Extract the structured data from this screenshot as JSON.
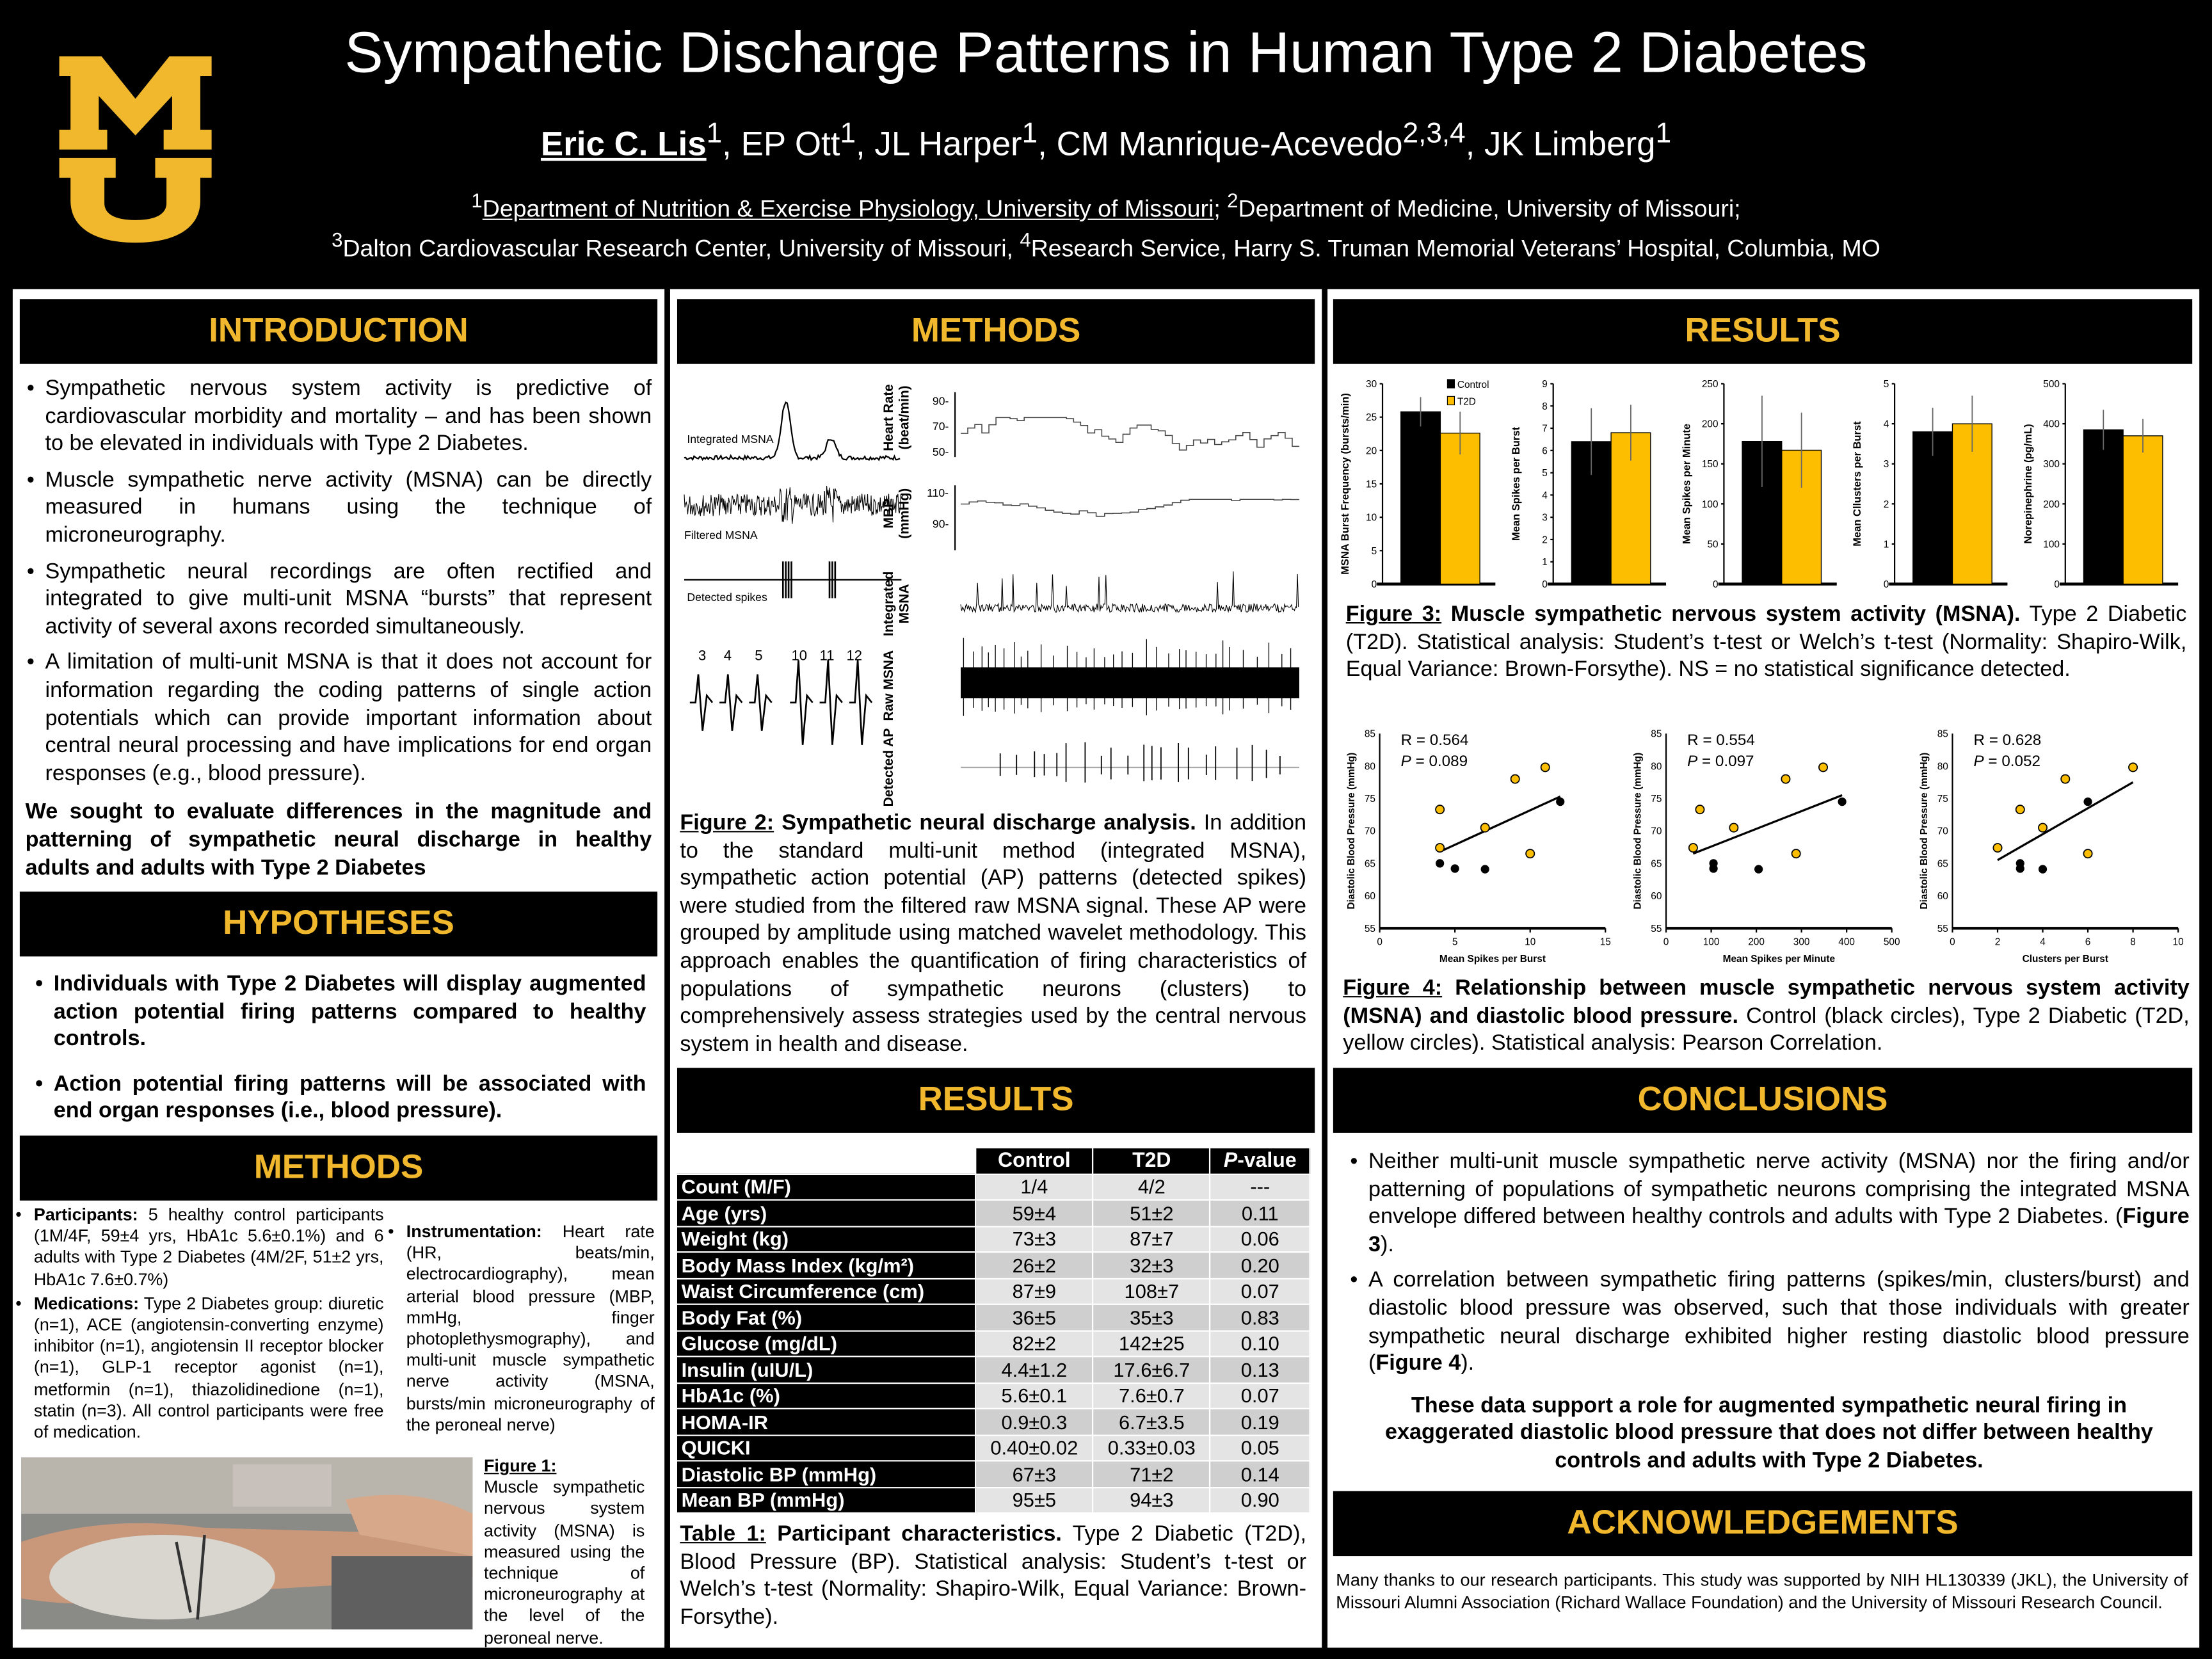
{
  "header": {
    "title": "Sympathetic Discharge Patterns in Human Type 2 Diabetes",
    "logo_text": "MU",
    "authors": [
      {
        "name": "Eric C. Lis",
        "sup": "1",
        "sep": ", "
      },
      {
        "name": "EP Ott",
        "sup": "1",
        "sep": ", "
      },
      {
        "name": "JL Harper",
        "sup": "1",
        "sep": ", "
      },
      {
        "name": "CM Manrique-Acevedo",
        "sup": "2,3,4",
        "sep": ", "
      },
      {
        "name": "JK Limberg",
        "sup": "1",
        "sep": ""
      }
    ],
    "affiliations": [
      {
        "sup": "1",
        "text": "Department of Nutrition & Exercise Physiology, University of Missouri",
        "sep": "; "
      },
      {
        "sup": "2",
        "text": "Department of Medicine, University of Missouri;",
        "sep": ""
      },
      {
        "sup": "3",
        "text": "Dalton Cardiovascular Research Center, University of Missouri, ",
        "sep": ""
      },
      {
        "sup": "4",
        "text": "Research Service, Harry S. Truman Memorial Veterans’ Hospital, Columbia, MO",
        "sep": ""
      }
    ]
  },
  "introduction": {
    "heading": "INTRODUCTION",
    "bullets": [
      "Sympathetic nervous system activity is predictive of cardiovascular morbidity and mortality – and has been shown to be elevated in individuals with Type 2 Diabetes.",
      "Muscle sympathetic nerve activity (MSNA) can be directly measured in humans using the technique of microneurography.",
      "Sympathetic neural recordings are often rectified and integrated to give multi-unit MSNA “bursts” that represent activity of several axons recorded simultaneously.",
      "A limitation of multi-unit MSNA is that it does not account for information regarding the coding patterns of single action potentials which can provide important information about central neural processing and have implications for end organ responses (e.g., blood pressure)."
    ],
    "aim": "We sought to evaluate differences in the magnitude and patterning of sympathetic neural discharge in healthy adults and adults with Type 2 Diabetes"
  },
  "hypotheses": {
    "heading": "HYPOTHESES",
    "bullets": [
      "Individuals with Type 2 Diabetes will display augmented action potential firing patterns compared to healthy controls.",
      "Action potential firing patterns will be associated with end organ responses (i.e., blood pressure)."
    ]
  },
  "methods_left": {
    "heading": "METHODS",
    "participants_label": "Participants:",
    "participants": " 5 healthy control participants (1M/4F, 59±4 yrs, HbA1c 5.6±0.1%) and 6 adults with Type 2 Diabetes (4M/2F, 51±2 yrs, HbA1c 7.6±0.7%)",
    "medications_label": "Medications:",
    "medications": " Type 2 Diabetes group: diuretic (n=1), ACE (angiotensin-converting enzyme) inhibitor (n=1), angiotensin II receptor blocker (n=1), GLP-1 receptor agonist (n=1), metformin (n=1), thiazolidinedione (n=1), statin (n=3). All control participants were free of medication.",
    "instrumentation_label": "Instrumentation:",
    "instrumentation": " Heart rate (HR, beats/min, electrocardiography), mean arterial blood pressure (MBP, mmHg, finger photoplethysmography), and multi-unit muscle sympathetic nerve activity (MSNA, bursts/min microneurography of the peroneal nerve)",
    "fig1_label": "Figure 1:",
    "fig1_caption": "Muscle sympathetic nervous system activity (MSNA) is measured using the technique of microneurography at the level of the peroneal nerve."
  },
  "methods_mid": {
    "heading": "METHODS",
    "trace_labels": {
      "integrated": "Integrated MSNA",
      "filtered": "Filtered MSNA",
      "detected": "Detected spikes",
      "hr": "Heart Rate (beat/min)",
      "mbp": "MBP (mmHg)",
      "int_msna": "Integrated MSNA",
      "raw": "Raw MSNA",
      "ap": "Detected AP"
    },
    "hr_ticks": [
      "90-",
      "70-",
      "50-"
    ],
    "mbp_ticks": [
      "110-",
      "90-"
    ],
    "cluster_numbers": [
      "3",
      "4",
      "5",
      "10",
      "11",
      "12"
    ],
    "fig2_label": "Figure 2:",
    "fig2_title": " Sympathetic neural discharge analysis.",
    "fig2_caption": " In addition to the standard multi-unit method (integrated MSNA), sympathetic action potential (AP) patterns (detected spikes) were studied from the filtered raw MSNA signal. These AP were grouped by amplitude using matched wavelet methodology. This approach enables the quantification of firing characteristics of populations of sympathetic neurons (clusters) to comprehensively assess strategies used by the central nervous system in health and disease."
  },
  "results_table": {
    "heading": "RESULTS",
    "columns": [
      "",
      "Control",
      "T2D",
      "P",
      "-value"
    ],
    "rows": [
      [
        "Count (M/F)",
        "1/4",
        "4/2",
        "---"
      ],
      [
        "Age (yrs)",
        "59±4",
        "51±2",
        "0.11"
      ],
      [
        "Weight (kg)",
        "73±3",
        "87±7",
        "0.06"
      ],
      [
        "Body Mass Index (kg/m²)",
        "26±2",
        "32±3",
        "0.20"
      ],
      [
        "Waist Circumference (cm)",
        "87±9",
        "108±7",
        "0.07"
      ],
      [
        "Body Fat (%)",
        "36±5",
        "35±3",
        "0.83"
      ],
      [
        "Glucose (mg/dL)",
        "82±2",
        "142±25",
        "0.10"
      ],
      [
        "Insulin (uIU/L)",
        "4.4±1.2",
        "17.6±6.7",
        "0.13"
      ],
      [
        "HbA1c (%)",
        "5.6±0.1",
        "7.6±0.7",
        "0.07"
      ],
      [
        "HOMA-IR",
        "0.9±0.3",
        "6.7±3.5",
        "0.19"
      ],
      [
        "QUICKI",
        "0.40±0.02",
        "0.33±0.03",
        "0.05"
      ],
      [
        "Diastolic BP (mmHg)",
        "67±3",
        "71±2",
        "0.14"
      ],
      [
        "Mean BP (mmHg)",
        "95±5",
        "94±3",
        "0.90"
      ]
    ],
    "caption_label": "Table 1:",
    "caption_title": " Participant characteristics.",
    "caption": " Type 2 Diabetic (T2D), Blood Pressure (BP). Statistical analysis: Student’s t-test or Welch’s t-test (Normality: Shapiro-Wilk, Equal Variance: Brown-Forsythe)."
  },
  "results_right": {
    "heading": "RESULTS",
    "fig3_label": "Figure 3:",
    "fig3_title": " Muscle sympathetic nervous system activity (MSNA).",
    "fig3_caption": " Type 2 Diabetic (T2D). Statistical analysis: Student’s t-test or Welch’s t-test (Normality: Shapiro-Wilk, Equal Variance: Brown-Forsythe). NS = no statistical significance detected.",
    "fig4_label": "Figure 4:",
    "fig4_title": " Relationship between muscle sympathetic nervous system activity (MSNA) and diastolic blood pressure.",
    "fig4_caption": " Control (black circles), Type 2 Diabetic (T2D, yellow circles). Statistical analysis: Pearson Correlation."
  },
  "conclusions": {
    "heading": "CONCLUSIONS",
    "b1": "Neither multi-unit muscle sympathetic nerve activity (MSNA) nor the firing and/or patterning of populations of sympathetic neurons comprising the integrated MSNA envelope differed between healthy controls and adults with Type 2 Diabetes. (",
    "b1_ref": "Figure 3",
    "b1_end": ").",
    "b2": "A correlation between sympathetic firing patterns (spikes/min, clusters/burst) and diastolic blood pressure was observed, such that those individuals with greater sympathetic neural discharge exhibited higher resting diastolic blood pressure (",
    "b2_ref": "Figure 4",
    "b2_end": ").",
    "summary": "These data support a role for augmented sympathetic neural firing in exaggerated diastolic blood pressure that does not differ between healthy controls and adults with Type 2 Diabetes."
  },
  "acknowledgements": {
    "heading": "ACKNOWLEDGEMENTS",
    "text": "Many thanks to our research participants. This study was supported by NIH HL130339 (JKL), the University of Missouri Alumni Association (Richard Wallace Foundation) and the University of Missouri Research Council."
  },
  "colors": {
    "gold": "#F1B82D",
    "control": "#000000",
    "t2d": "#FDBE00"
  },
  "chart_data": [
    {
      "type": "bar",
      "categories": [
        "Control",
        "T2D"
      ],
      "legend": [
        "Control",
        "T2D"
      ],
      "legend_position": "top-right",
      "ylabel": "MSNA Burst Frequency (bursts/min)",
      "ylim": [
        0,
        30
      ],
      "yticks": [
        0,
        5,
        10,
        15,
        20,
        25,
        30
      ],
      "values": [
        25.8,
        22.6
      ],
      "errors": [
        2.2,
        3.2
      ]
    },
    {
      "type": "bar",
      "categories": [
        "Control",
        "T2D"
      ],
      "ylabel": "Mean Spikes per Burst",
      "ylim": [
        0,
        9
      ],
      "yticks": [
        0,
        1,
        2,
        3,
        4,
        5,
        6,
        7,
        8,
        9
      ],
      "values": [
        6.4,
        6.8
      ],
      "errors": [
        1.5,
        1.25
      ]
    },
    {
      "type": "bar",
      "categories": [
        "Control",
        "T2D"
      ],
      "ylabel": "Mean Spikes per Minute",
      "ylim": [
        0,
        250
      ],
      "yticks": [
        0,
        50,
        100,
        150,
        200,
        250
      ],
      "values": [
        178,
        167
      ],
      "errors": [
        57,
        47
      ]
    },
    {
      "type": "bar",
      "categories": [
        "Control",
        "T2D"
      ],
      "ylabel": "Mean Cllusters per Burst",
      "ylim": [
        0,
        5
      ],
      "yticks": [
        0,
        1,
        2,
        3,
        4,
        5
      ],
      "values": [
        3.8,
        4.0
      ],
      "errors": [
        0.6,
        0.7
      ]
    },
    {
      "type": "bar",
      "categories": [
        "Control",
        "T2D"
      ],
      "ylabel": "Norepinephrine (pg/mL)",
      "ylim": [
        0,
        500
      ],
      "yticks": [
        0,
        100,
        200,
        300,
        400,
        500
      ],
      "values": [
        385,
        370
      ],
      "errors": [
        50,
        42
      ]
    },
    {
      "type": "scatter",
      "xlabel": "Mean Spikes per Burst",
      "ylabel": "Diastolic Blood Pressure (mmHg)",
      "xlim": [
        0,
        15
      ],
      "ylim": [
        55,
        85
      ],
      "xticks": [
        0,
        5,
        10,
        15
      ],
      "yticks": [
        55,
        60,
        65,
        70,
        75,
        80,
        85
      ],
      "r_text": "R = 0.564",
      "p_label": "P",
      "p_text": " = 0.089",
      "control": [
        [
          4,
          65
        ],
        [
          5,
          64.2
        ],
        [
          7,
          64.1
        ],
        [
          12,
          74.5
        ]
      ],
      "t2d": [
        [
          4,
          73.3
        ],
        [
          4,
          67.4
        ],
        [
          7,
          70.5
        ],
        [
          9,
          78
        ],
        [
          10,
          66.5
        ],
        [
          11,
          79.8
        ]
      ],
      "fit": [
        [
          4,
          66.8
        ],
        [
          12,
          75.3
        ]
      ]
    },
    {
      "type": "scatter",
      "xlabel": "Mean Spikes per Minute",
      "ylabel": "Diastolic Blood Pressure (mmHg)",
      "xlim": [
        0,
        500
      ],
      "ylim": [
        55,
        85
      ],
      "xticks": [
        0,
        100,
        200,
        300,
        400,
        500
      ],
      "yticks": [
        55,
        60,
        65,
        70,
        75,
        80,
        85
      ],
      "r_text": "R = 0.554",
      "p_label": "P",
      "p_text": " = 0.097",
      "control": [
        [
          105,
          65
        ],
        [
          105,
          64.2
        ],
        [
          205,
          64.1
        ],
        [
          390,
          74.5
        ]
      ],
      "t2d": [
        [
          60,
          67.4
        ],
        [
          75,
          73.3
        ],
        [
          150,
          70.5
        ],
        [
          265,
          78
        ],
        [
          288,
          66.5
        ],
        [
          348,
          79.8
        ]
      ],
      "fit": [
        [
          60,
          66.5
        ],
        [
          390,
          75.5
        ]
      ]
    },
    {
      "type": "scatter",
      "xlabel": "Clusters per Burst",
      "ylabel": "Diastolic Blood Pressure (mmHg)",
      "xlim": [
        0,
        10
      ],
      "ylim": [
        55,
        85
      ],
      "xticks": [
        0,
        2,
        4,
        6,
        8,
        10
      ],
      "yticks": [
        55,
        60,
        65,
        70,
        75,
        80,
        85
      ],
      "r_text": "R = 0.628",
      "p_label": "P",
      "p_text": " = 0.052",
      "control": [
        [
          3,
          65
        ],
        [
          3,
          64.2
        ],
        [
          4,
          64.1
        ],
        [
          6,
          74.5
        ]
      ],
      "t2d": [
        [
          2,
          67.4
        ],
        [
          3,
          73.3
        ],
        [
          4,
          70.5
        ],
        [
          5,
          78
        ],
        [
          6,
          66.5
        ],
        [
          8,
          79.8
        ]
      ],
      "fit": [
        [
          2,
          65.5
        ],
        [
          8,
          77.5
        ]
      ]
    }
  ]
}
